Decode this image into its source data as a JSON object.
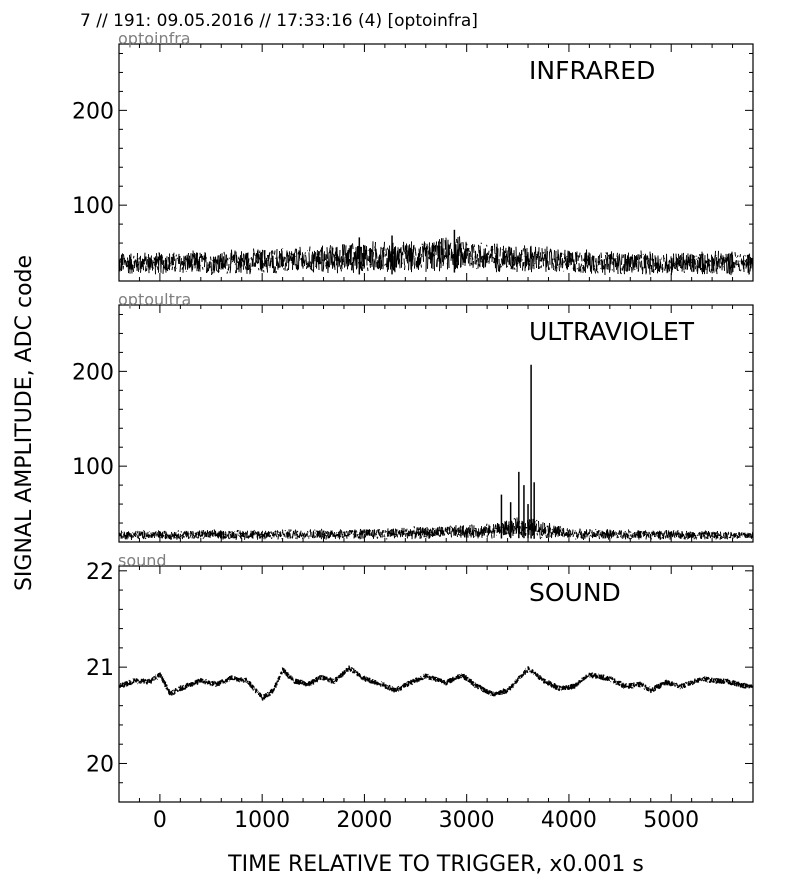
{
  "header": {
    "text": "7 // 191:   09.05.2016 // 17:33:16 (4)  [optoinfra]"
  },
  "figure": {
    "ylabel": "SIGNAL AMPLITUDE,  ADC code",
    "xlabel": "TIME RELATIVE TO TRIGGER,   x0.001 s"
  },
  "chart_data": [
    {
      "type": "line",
      "tag": "optoinfra",
      "title": "INFRARED",
      "xlim": [
        -400,
        5800
      ],
      "ylim": [
        20,
        270
      ],
      "x_ticks": [
        "0",
        "1000",
        "2000",
        "3000",
        "4000",
        "5000"
      ],
      "y_ticks": [
        "100",
        "200"
      ],
      "x_tick_values": [
        0,
        1000,
        2000,
        3000,
        4000,
        5000
      ],
      "y_tick_values": [
        100,
        200
      ],
      "show_x_tick_labels": false,
      "envelope": {
        "x": [
          -400,
          0,
          500,
          1000,
          1500,
          2000,
          2500,
          2900,
          3200,
          3600,
          4000,
          4500,
          5000,
          5500,
          5750
        ],
        "min": [
          25,
          26,
          25,
          26,
          26,
          27,
          27,
          29,
          28,
          27,
          26,
          25,
          25,
          25,
          26
        ],
        "max": [
          52,
          52,
          53,
          56,
          58,
          64,
          63,
          70,
          63,
          60,
          55,
          53,
          52,
          53,
          53
        ]
      },
      "spikes": [
        {
          "x": 2270,
          "y": 68
        },
        {
          "x": 2880,
          "y": 74
        },
        {
          "x": 1950,
          "y": 66
        }
      ]
    },
    {
      "type": "line",
      "tag": "optoultra",
      "title": "ULTRAVIOLET",
      "xlim": [
        -400,
        5800
      ],
      "ylim": [
        20,
        270
      ],
      "x_ticks": [
        "0",
        "1000",
        "2000",
        "3000",
        "4000",
        "5000"
      ],
      "y_ticks": [
        "100",
        "200"
      ],
      "x_tick_values": [
        0,
        1000,
        2000,
        3000,
        4000,
        5000
      ],
      "y_tick_values": [
        100,
        200
      ],
      "show_x_tick_labels": false,
      "envelope": {
        "x": [
          -400,
          0,
          1000,
          2000,
          2800,
          3200,
          3400,
          3600,
          3700,
          4000,
          5000,
          5750
        ],
        "min": [
          22,
          22,
          22,
          22,
          23,
          23,
          24,
          24,
          23,
          22,
          22,
          22
        ],
        "max": [
          33,
          33,
          34,
          35,
          38,
          40,
          45,
          48,
          45,
          35,
          33,
          32
        ]
      },
      "spikes": [
        {
          "x": 3340,
          "y": 70
        },
        {
          "x": 3430,
          "y": 62
        },
        {
          "x": 3510,
          "y": 94
        },
        {
          "x": 3560,
          "y": 80
        },
        {
          "x": 3630,
          "y": 207
        },
        {
          "x": 3660,
          "y": 83
        },
        {
          "x": 3600,
          "y": 60
        }
      ]
    },
    {
      "type": "line",
      "tag": "sound",
      "title": "SOUND",
      "xlim": [
        -400,
        5800
      ],
      "ylim": [
        19.6,
        22.05
      ],
      "x_ticks": [
        "0",
        "1000",
        "2000",
        "3000",
        "4000",
        "5000"
      ],
      "y_ticks": [
        "20",
        "21",
        "22"
      ],
      "x_tick_values": [
        0,
        1000,
        2000,
        3000,
        4000,
        5000
      ],
      "y_tick_values": [
        20,
        21,
        22
      ],
      "show_x_tick_labels": true,
      "trace": {
        "x": [
          -400,
          -250,
          -100,
          0,
          100,
          200,
          400,
          550,
          700,
          850,
          1000,
          1100,
          1200,
          1300,
          1450,
          1580,
          1700,
          1850,
          2000,
          2150,
          2300,
          2450,
          2600,
          2800,
          2950,
          3100,
          3250,
          3400,
          3600,
          3750,
          3900,
          4050,
          4200,
          4400,
          4550,
          4700,
          4800,
          4950,
          5100,
          5300,
          5400,
          5550,
          5750
        ],
        "y": [
          20.8,
          20.86,
          20.85,
          20.92,
          20.72,
          20.78,
          20.86,
          20.82,
          20.89,
          20.86,
          20.68,
          20.75,
          20.97,
          20.86,
          20.82,
          20.9,
          20.85,
          20.99,
          20.88,
          20.83,
          20.76,
          20.84,
          20.91,
          20.84,
          20.92,
          20.8,
          20.72,
          20.76,
          20.98,
          20.86,
          20.78,
          20.8,
          20.92,
          20.88,
          20.8,
          20.82,
          20.76,
          20.84,
          20.8,
          20.88,
          20.86,
          20.85,
          20.8
        ]
      },
      "band_halfwidth": 0.03
    }
  ]
}
